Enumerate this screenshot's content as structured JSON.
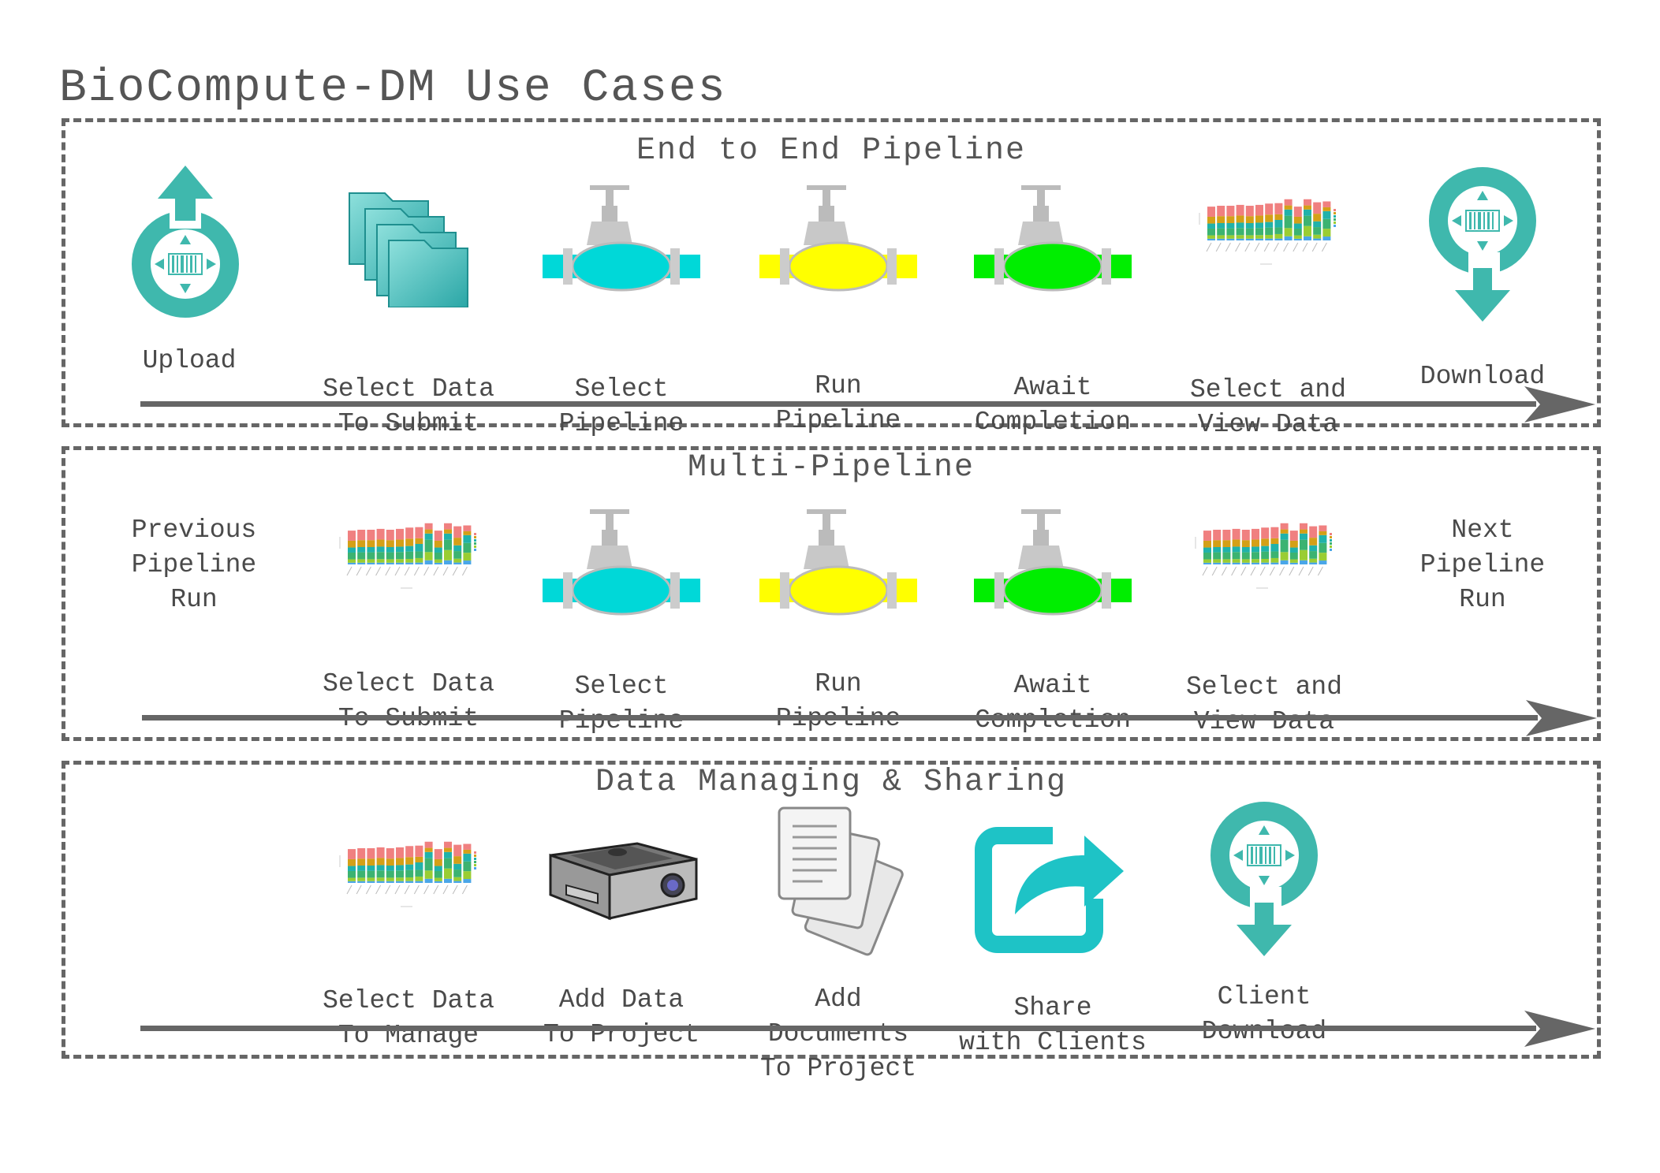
{
  "title": "BioCompute-DM Use Cases",
  "colors": {
    "teal": "#3fb8ad",
    "cyan_valve": "#00d8d8",
    "yellow_valve": "#ffff00",
    "green_valve": "#00ee00",
    "border": "#666666",
    "arrow": "#666666"
  },
  "panels": [
    {
      "title": "End to End Pipeline",
      "steps": [
        {
          "icon": "upload-icon",
          "label": "Upload"
        },
        {
          "icon": "folders-icon",
          "label": "Select Data\nTo Submit"
        },
        {
          "icon": "cyan-valve-icon",
          "label": "Select\nPipeline"
        },
        {
          "icon": "yellow-valve-icon",
          "label": "Run\nPipeline"
        },
        {
          "icon": "green-valve-icon",
          "label": "Await\nCompletion"
        },
        {
          "icon": "stacked-bar-chart-icon",
          "label": "Select and\nView Data"
        },
        {
          "icon": "download-icon",
          "label": "Download"
        }
      ]
    },
    {
      "title": "Multi-Pipeline",
      "previous_label": "Previous\nPipeline\nRun",
      "next_label": "Next\nPipeline\nRun",
      "steps": [
        {
          "icon": "stacked-bar-chart-icon",
          "label": "Select Data\nTo Submit"
        },
        {
          "icon": "cyan-valve-icon",
          "label": "Select\nPipeline"
        },
        {
          "icon": "yellow-valve-icon",
          "label": "Run\nPipeline"
        },
        {
          "icon": "green-valve-icon",
          "label": "Await\nCompletion"
        },
        {
          "icon": "stacked-bar-chart-icon",
          "label": "Select and\nView Data"
        }
      ]
    },
    {
      "title": "Data Managing & Sharing",
      "steps": [
        {
          "icon": "stacked-bar-chart-icon",
          "label": "Select Data\nTo Manage"
        },
        {
          "icon": "projector-icon",
          "label": "Add Data\nTo Project"
        },
        {
          "icon": "documents-icon",
          "label": "Add Documents\nTo Project"
        },
        {
          "icon": "share-icon",
          "label": "Share\nwith Clients"
        },
        {
          "icon": "download-icon",
          "label": "Client\nDownload"
        }
      ]
    }
  ]
}
